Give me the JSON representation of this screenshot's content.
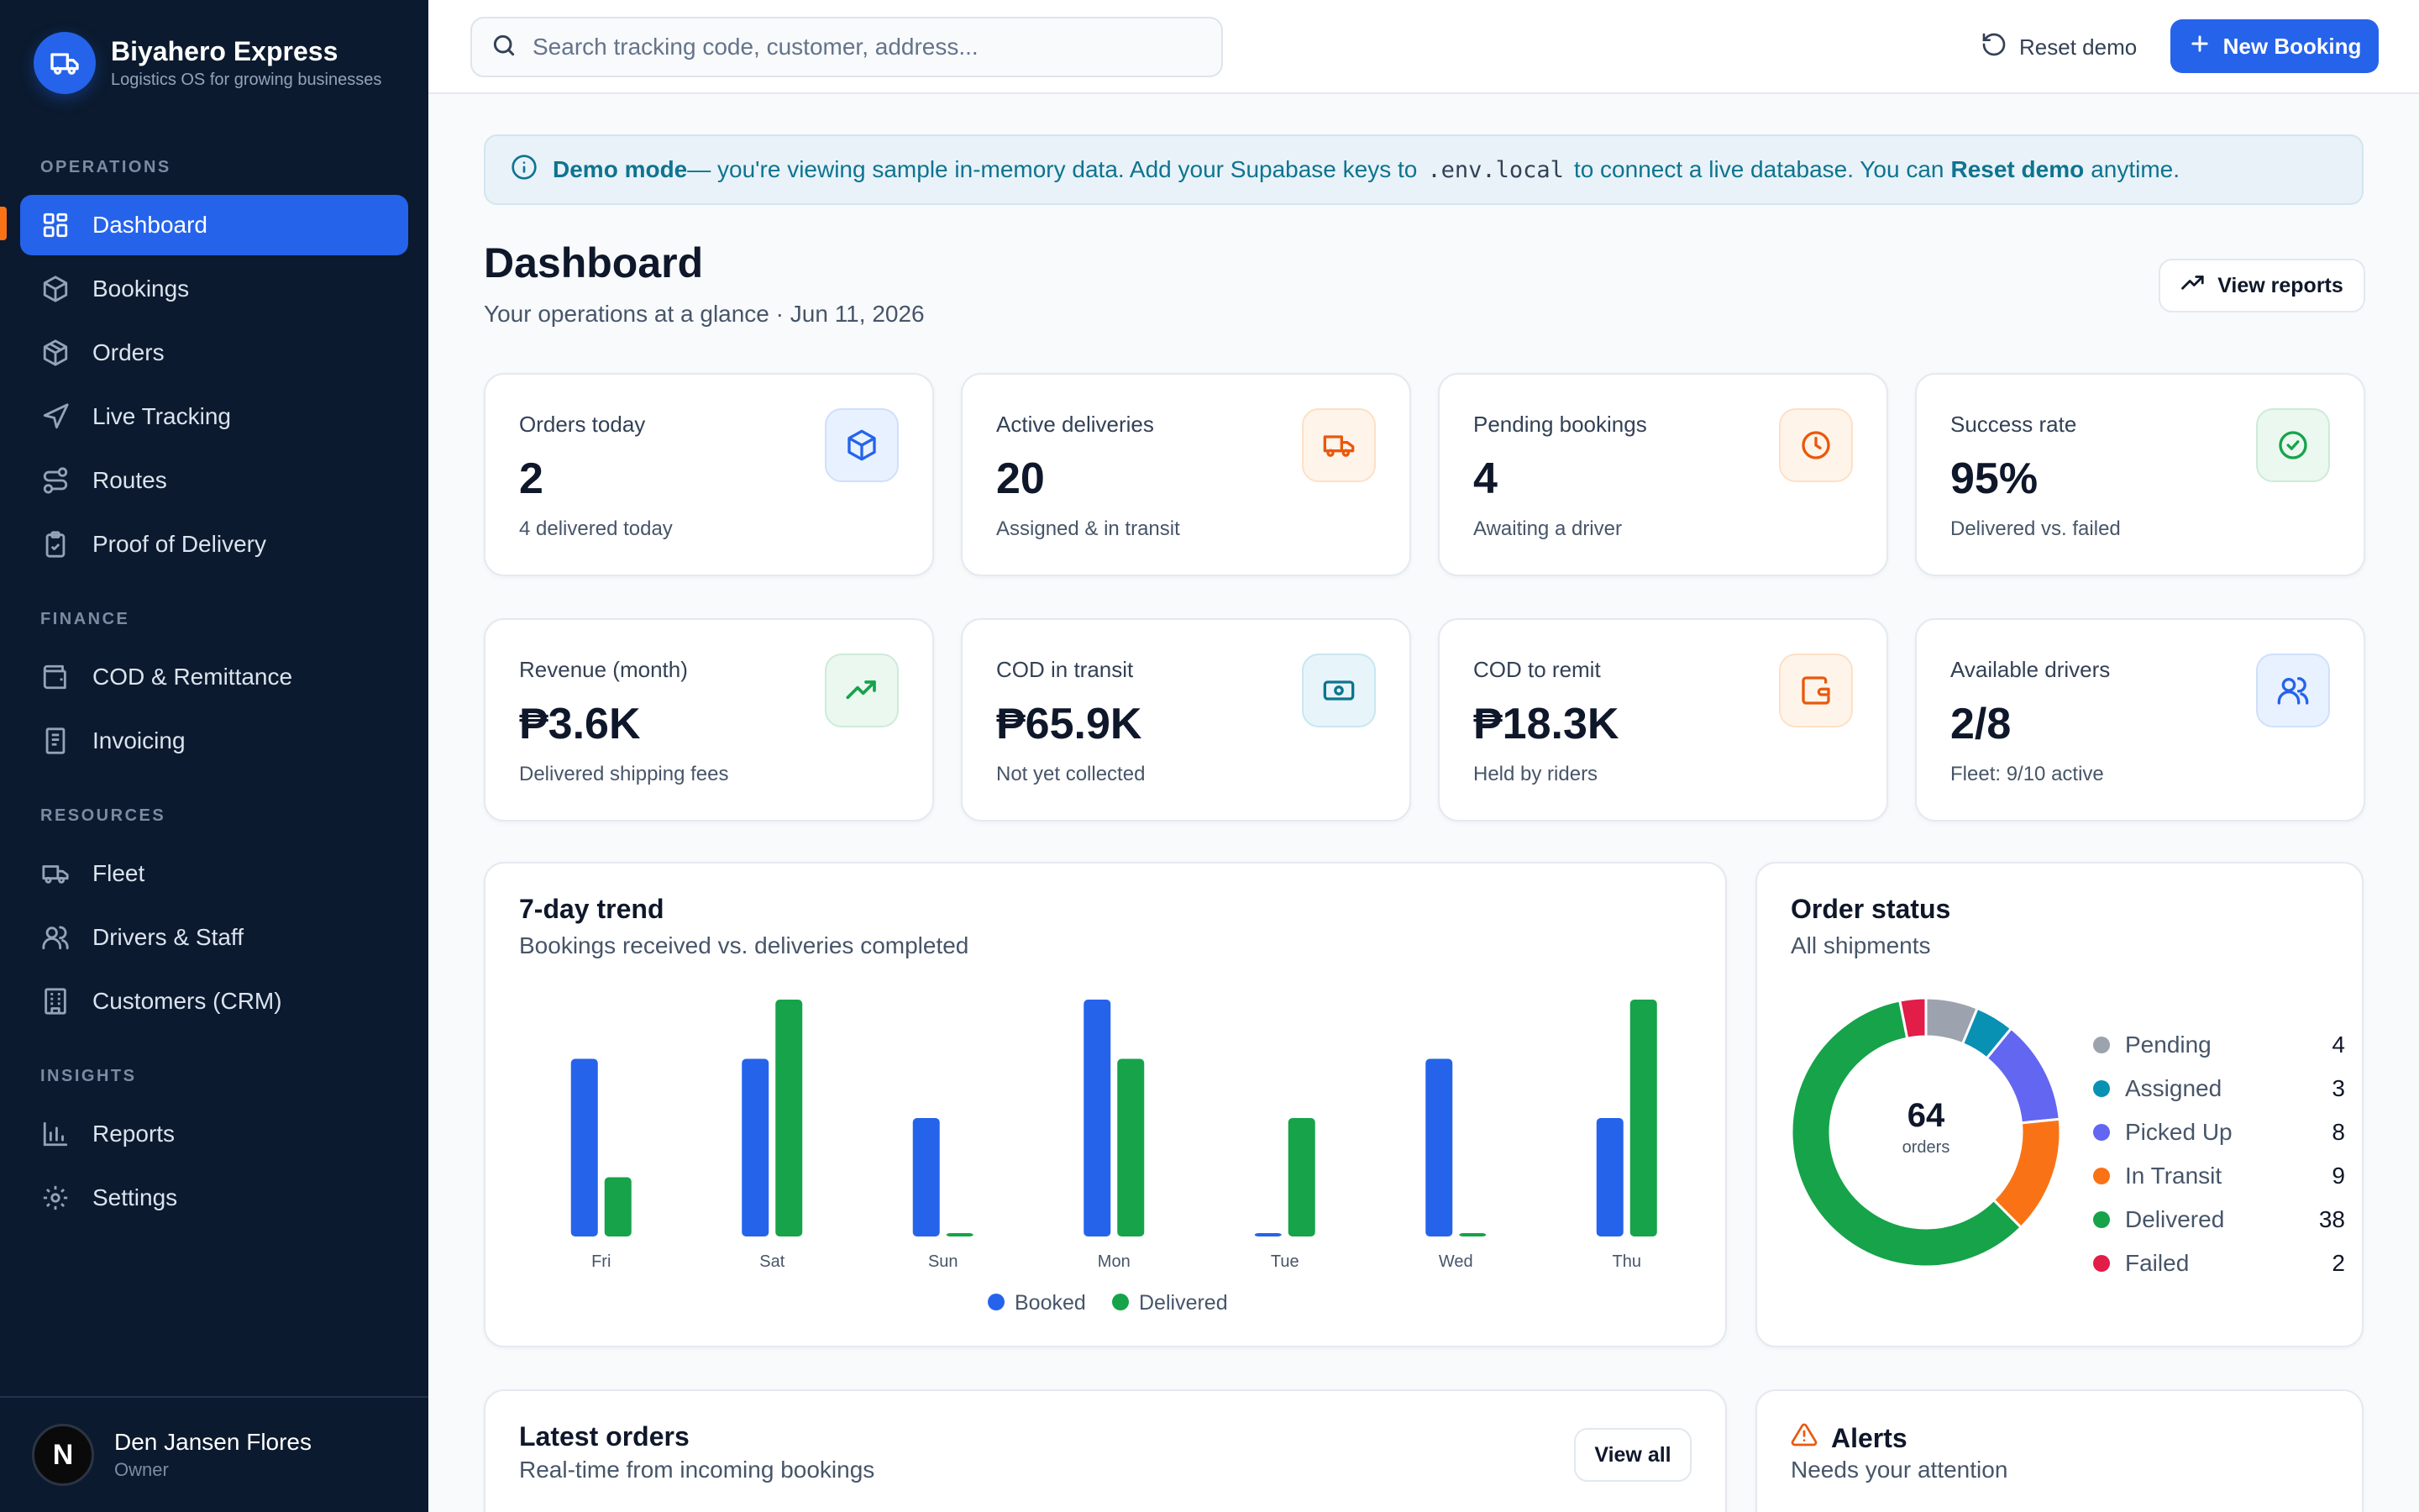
{
  "brand": {
    "name": "Biyahero Express",
    "tagline": "Logistics OS for growing businesses"
  },
  "sidebar": {
    "sections": {
      "operations": "OPERATIONS",
      "finance": "FINANCE",
      "resources": "RESOURCES",
      "insights": "INSIGHTS"
    },
    "items": {
      "dashboard": "Dashboard",
      "bookings": "Bookings",
      "orders": "Orders",
      "live_tracking": "Live Tracking",
      "routes": "Routes",
      "proof_of_delivery": "Proof of Delivery",
      "cod_remittance": "COD & Remittance",
      "invoicing": "Invoicing",
      "fleet": "Fleet",
      "drivers_staff": "Drivers & Staff",
      "customers": "Customers (CRM)",
      "reports": "Reports",
      "settings": "Settings"
    },
    "user": {
      "initial": "N",
      "name": "Den Jansen Flores",
      "role": "Owner"
    }
  },
  "topbar": {
    "search_placeholder": "Search tracking code, customer, address...",
    "reset_label": "Reset demo",
    "new_booking_label": "New Booking"
  },
  "banner": {
    "title": "Demo mode",
    "text1": "— you're viewing sample in-memory data. Add your Supabase keys to",
    "code": ".env.local",
    "text2": "to connect a live database. You can",
    "link": "Reset demo",
    "text3": "anytime."
  },
  "page": {
    "title": "Dashboard",
    "subtitle": "Your operations at a glance · Jun 11, 2026",
    "view_reports_label": "View reports"
  },
  "stats": {
    "orders_today": {
      "label": "Orders today",
      "value": "2",
      "sub": "4 delivered today"
    },
    "active_deliveries": {
      "label": "Active deliveries",
      "value": "20",
      "sub": "Assigned & in transit"
    },
    "pending_bookings": {
      "label": "Pending bookings",
      "value": "4",
      "sub": "Awaiting a driver"
    },
    "success_rate": {
      "label": "Success rate",
      "value": "95%",
      "sub": "Delivered vs. failed"
    },
    "revenue": {
      "label": "Revenue (month)",
      "value": "₱3.6K",
      "sub": "Delivered shipping fees"
    },
    "cod_transit": {
      "label": "COD in transit",
      "value": "₱65.9K",
      "sub": "Not yet collected"
    },
    "cod_remit": {
      "label": "COD to remit",
      "value": "₱18.3K",
      "sub": "Held by riders"
    },
    "drivers": {
      "label": "Available drivers",
      "value": "2/8",
      "sub": "Fleet: 9/10 active"
    }
  },
  "trend": {
    "title": "7-day trend",
    "subtitle": "Bookings received vs. deliveries completed"
  },
  "order_status": {
    "title": "Order status",
    "subtitle": "All shipments",
    "total": "64",
    "total_unit": "orders",
    "rows": [
      {
        "name": "Pending",
        "count": "4",
        "color": "#9ca3af"
      },
      {
        "name": "Assigned",
        "count": "3",
        "color": "#0891b2"
      },
      {
        "name": "Picked Up",
        "count": "8",
        "color": "#6366f1"
      },
      {
        "name": "In Transit",
        "count": "9",
        "color": "#f97316"
      },
      {
        "name": "Delivered",
        "count": "38",
        "color": "#16a34a"
      },
      {
        "name": "Failed",
        "count": "2",
        "color": "#e11d48"
      }
    ]
  },
  "latest_orders": {
    "title": "Latest orders",
    "subtitle": "Real-time from incoming bookings",
    "view_all_label": "View all"
  },
  "alerts": {
    "title": "Alerts",
    "subtitle": "Needs your attention"
  },
  "chart_data": [
    {
      "type": "bar",
      "categories": [
        "Fri",
        "Sat",
        "Sun",
        "Mon",
        "Tue",
        "Wed",
        "Thu"
      ],
      "series": [
        {
          "name": "Booked",
          "values": [
            3,
            3,
            2,
            4,
            0,
            3,
            2
          ],
          "color": "#2563eb"
        },
        {
          "name": "Delivered",
          "values": [
            1,
            4,
            0,
            3,
            2,
            0,
            4
          ],
          "color": "#16a34a"
        }
      ],
      "title": "7-day trend",
      "ylim": [
        0,
        4
      ],
      "grid": false,
      "legend": "bottom-center"
    },
    {
      "type": "pie",
      "categories": [
        "Pending",
        "Assigned",
        "Picked Up",
        "In Transit",
        "Delivered",
        "Failed"
      ],
      "values": [
        4,
        3,
        8,
        9,
        38,
        2
      ],
      "colors": [
        "#9ca3af",
        "#0891b2",
        "#6366f1",
        "#f97316",
        "#16a34a",
        "#e11d48"
      ],
      "title": "Order status",
      "legend": "right"
    }
  ]
}
